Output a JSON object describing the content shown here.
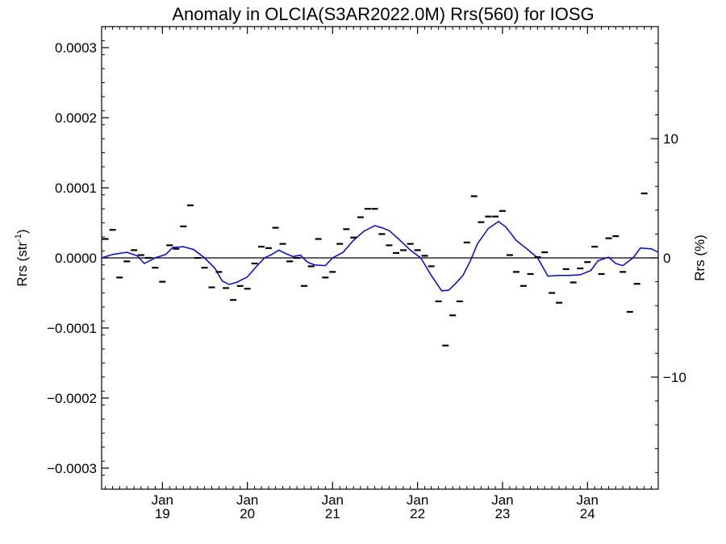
{
  "chart_data": {
    "type": "scatter",
    "title": "Anomaly in OLCIA(S3AR2022.0M) Rrs(560) for IOSG",
    "ylabel": {
      "base": "Rrs (str",
      "sup": "-1",
      "close": ")"
    },
    "y2label": "Rrs (%)",
    "ylim": [
      -0.00033,
      0.00033
    ],
    "y_ticks": [
      {
        "v": 0.0003,
        "label": "0.0003"
      },
      {
        "v": 0.0002,
        "label": "0.0002"
      },
      {
        "v": 0.0001,
        "label": "0.0001"
      },
      {
        "v": 0.0,
        "label": "0.0000"
      },
      {
        "v": -0.0001,
        "label": "−0.0001"
      },
      {
        "v": -0.0002,
        "label": "−0.0002"
      },
      {
        "v": -0.0003,
        "label": "−0.0003"
      }
    ],
    "y2lim": [
      -19.4,
      19.4
    ],
    "y2_ticks": [
      {
        "v": 10,
        "label": "10"
      },
      {
        "v": 0,
        "label": "0"
      },
      {
        "v": -10,
        "label": "−10"
      }
    ],
    "xlim": [
      "2018-04-15",
      "2024-10-31"
    ],
    "x_ticks": [
      {
        "date": "2019-01-01",
        "month": "Jan",
        "year": "19"
      },
      {
        "date": "2020-01-01",
        "month": "Jan",
        "year": "20"
      },
      {
        "date": "2021-01-01",
        "month": "Jan",
        "year": "21"
      },
      {
        "date": "2022-01-01",
        "month": "Jan",
        "year": "22"
      },
      {
        "date": "2023-01-01",
        "month": "Jan",
        "year": "23"
      },
      {
        "date": "2024-01-01",
        "month": "Jan",
        "year": "24"
      }
    ],
    "zero_line": true,
    "grid": false,
    "series": [
      {
        "style": "markers",
        "color": "#000000",
        "points": [
          [
            "2018-05-01",
            2.7e-05
          ],
          [
            "2018-06-01",
            4e-05
          ],
          [
            "2018-07-01",
            -2.8e-05
          ],
          [
            "2018-08-01",
            -5e-06
          ],
          [
            "2018-09-01",
            1.1e-05
          ],
          [
            "2018-10-01",
            4e-06
          ],
          [
            "2018-11-01",
            0.0
          ],
          [
            "2018-12-01",
            -1.4e-05
          ],
          [
            "2019-01-01",
            -3.4e-05
          ],
          [
            "2019-02-01",
            1.8e-05
          ],
          [
            "2019-03-01",
            1.3e-05
          ],
          [
            "2019-04-01",
            4.5e-05
          ],
          [
            "2019-05-01",
            7.5e-05
          ],
          [
            "2019-06-01",
            0.0
          ],
          [
            "2019-07-01",
            -1.4e-05
          ],
          [
            "2019-08-01",
            -4.2e-05
          ],
          [
            "2019-09-01",
            -2e-05
          ],
          [
            "2019-10-01",
            -4.3e-05
          ],
          [
            "2019-11-01",
            -6e-05
          ],
          [
            "2019-12-01",
            -4e-05
          ],
          [
            "2020-01-01",
            -4.4e-05
          ],
          [
            "2020-02-01",
            -8e-06
          ],
          [
            "2020-03-01",
            1.6e-05
          ],
          [
            "2020-04-01",
            1.4e-05
          ],
          [
            "2020-05-01",
            4.3e-05
          ],
          [
            "2020-06-01",
            2e-05
          ],
          [
            "2020-07-01",
            -5e-06
          ],
          [
            "2020-08-01",
            0.0
          ],
          [
            "2020-09-01",
            -4e-05
          ],
          [
            "2020-10-01",
            -1.2e-05
          ],
          [
            "2020-11-01",
            2.7e-05
          ],
          [
            "2020-12-01",
            -2.8e-05
          ],
          [
            "2021-01-01",
            -2e-05
          ],
          [
            "2021-02-01",
            2e-05
          ],
          [
            "2021-03-01",
            4.1e-05
          ],
          [
            "2021-04-01",
            2.9e-05
          ],
          [
            "2021-05-01",
            5.8e-05
          ],
          [
            "2021-06-01",
            7e-05
          ],
          [
            "2021-07-01",
            7e-05
          ],
          [
            "2021-08-01",
            3.4e-05
          ],
          [
            "2021-09-01",
            1.8e-05
          ],
          [
            "2021-10-01",
            7e-06
          ],
          [
            "2021-11-01",
            1.1e-05
          ],
          [
            "2021-12-01",
            2e-05
          ],
          [
            "2022-01-01",
            1.1e-05
          ],
          [
            "2022-02-01",
            3e-06
          ],
          [
            "2022-03-01",
            -1.2e-05
          ],
          [
            "2022-04-01",
            -6.2e-05
          ],
          [
            "2022-05-01",
            -0.000125
          ],
          [
            "2022-06-01",
            -8.2e-05
          ],
          [
            "2022-07-01",
            -6.2e-05
          ],
          [
            "2022-08-01",
            2.2e-05
          ],
          [
            "2022-09-01",
            8.8e-05
          ],
          [
            "2022-10-01",
            5.1e-05
          ],
          [
            "2022-11-01",
            5.9e-05
          ],
          [
            "2022-12-01",
            5.9e-05
          ],
          [
            "2023-01-01",
            6.7e-05
          ],
          [
            "2023-02-01",
            4e-06
          ],
          [
            "2023-03-01",
            -2e-05
          ],
          [
            "2023-04-01",
            -4e-05
          ],
          [
            "2023-05-01",
            -2.3e-05
          ],
          [
            "2023-06-01",
            1e-06
          ],
          [
            "2023-07-01",
            8e-06
          ],
          [
            "2023-08-01",
            -5e-05
          ],
          [
            "2023-09-01",
            -6.4e-05
          ],
          [
            "2023-10-01",
            -1.6e-05
          ],
          [
            "2023-11-01",
            -3.5e-05
          ],
          [
            "2023-12-01",
            -1.5e-05
          ],
          [
            "2024-01-01",
            -6e-06
          ],
          [
            "2024-02-01",
            1.6e-05
          ],
          [
            "2024-03-01",
            -2.3e-05
          ],
          [
            "2024-04-01",
            2.8e-05
          ],
          [
            "2024-05-01",
            3.1e-05
          ],
          [
            "2024-06-01",
            -2e-05
          ],
          [
            "2024-07-01",
            -7.7e-05
          ],
          [
            "2024-08-01",
            -3.7e-05
          ],
          [
            "2024-09-01",
            9.2e-05
          ]
        ]
      },
      {
        "style": "line",
        "color": "#0000ff",
        "points": [
          [
            "2018-04-15",
            0.0
          ],
          [
            "2018-06-01",
            5e-06
          ],
          [
            "2018-08-01",
            8e-06
          ],
          [
            "2018-09-15",
            3e-06
          ],
          [
            "2018-10-15",
            -8e-06
          ],
          [
            "2018-12-01",
            0.0
          ],
          [
            "2019-01-15",
            5e-06
          ],
          [
            "2019-02-15",
            1.5e-05
          ],
          [
            "2019-04-01",
            1.6e-05
          ],
          [
            "2019-05-15",
            1.2e-05
          ],
          [
            "2019-07-01",
            0.0
          ],
          [
            "2019-08-15",
            -1.5e-05
          ],
          [
            "2019-09-15",
            -3.3e-05
          ],
          [
            "2019-10-15",
            -3.8e-05
          ],
          [
            "2019-11-15",
            -3.5e-05
          ],
          [
            "2020-01-01",
            -2.7e-05
          ],
          [
            "2020-02-15",
            -1e-05
          ],
          [
            "2020-03-15",
            0.0
          ],
          [
            "2020-04-15",
            5e-06
          ],
          [
            "2020-05-15",
            1.1e-05
          ],
          [
            "2020-06-15",
            6e-06
          ],
          [
            "2020-07-15",
            2e-06
          ],
          [
            "2020-08-15",
            4e-06
          ],
          [
            "2020-09-15",
            -6e-06
          ],
          [
            "2020-10-15",
            -1e-05
          ],
          [
            "2020-12-01",
            -1.1e-05
          ],
          [
            "2021-01-01",
            0.0
          ],
          [
            "2021-02-15",
            8e-06
          ],
          [
            "2021-04-01",
            2.5e-05
          ],
          [
            "2021-05-15",
            3.8e-05
          ],
          [
            "2021-07-01",
            4.6e-05
          ],
          [
            "2021-08-01",
            4.3e-05
          ],
          [
            "2021-09-01",
            3.9e-05
          ],
          [
            "2021-10-15",
            2.6e-05
          ],
          [
            "2021-12-01",
            1.1e-05
          ],
          [
            "2022-01-15",
            0.0
          ],
          [
            "2022-03-01",
            -2.5e-05
          ],
          [
            "2022-04-15",
            -4.7e-05
          ],
          [
            "2022-05-15",
            -4.6e-05
          ],
          [
            "2022-06-15",
            -3.6e-05
          ],
          [
            "2022-07-15",
            -2.5e-05
          ],
          [
            "2022-08-15",
            -5e-06
          ],
          [
            "2022-09-15",
            2e-05
          ],
          [
            "2022-11-01",
            4.2e-05
          ],
          [
            "2022-12-15",
            5.2e-05
          ],
          [
            "2023-01-15",
            4.4e-05
          ],
          [
            "2023-03-01",
            2.5e-05
          ],
          [
            "2023-04-15",
            1.3e-05
          ],
          [
            "2023-06-01",
            0.0
          ],
          [
            "2023-07-15",
            -2.6e-05
          ],
          [
            "2023-09-01",
            -2.5e-05
          ],
          [
            "2023-10-15",
            -2.5e-05
          ],
          [
            "2023-12-01",
            -2.4e-05
          ],
          [
            "2024-01-15",
            -1.8e-05
          ],
          [
            "2024-02-15",
            -4e-06
          ],
          [
            "2024-04-01",
            1e-06
          ],
          [
            "2024-05-01",
            -8e-06
          ],
          [
            "2024-06-01",
            -1.1e-05
          ],
          [
            "2024-07-15",
            0.0
          ],
          [
            "2024-08-15",
            1.4e-05
          ],
          [
            "2024-10-01",
            1.3e-05
          ],
          [
            "2024-10-31",
            8e-06
          ]
        ]
      }
    ]
  }
}
